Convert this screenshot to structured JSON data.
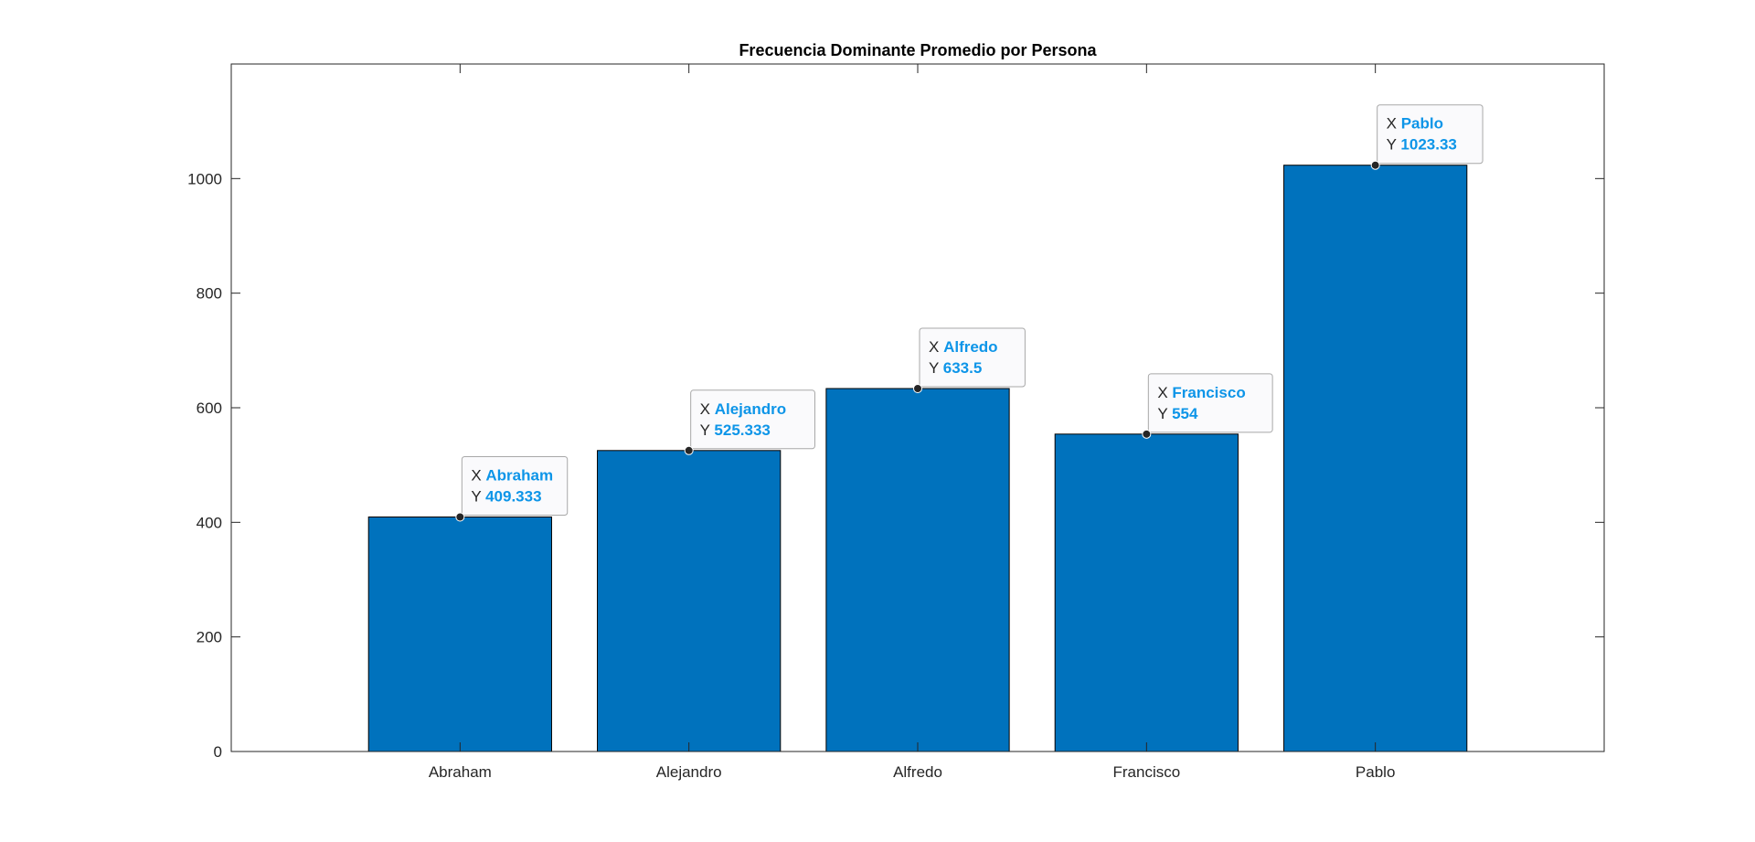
{
  "chart_data": {
    "type": "bar",
    "title": "Frecuencia Dominante Promedio por Persona",
    "categories": [
      "Abraham",
      "Alejandro",
      "Alfredo",
      "Francisco",
      "Pablo"
    ],
    "values": [
      409.333,
      525.333,
      633.5,
      554,
      1023.33
    ],
    "value_labels": [
      "409.333",
      "525.333",
      "633.5",
      "554",
      "1023.33"
    ],
    "yticks": [
      0,
      200,
      400,
      600,
      800,
      1000
    ],
    "ylim": [
      0,
      1200
    ],
    "xlabel": "",
    "ylabel": "",
    "grid": false,
    "bar_color": "#0072BD",
    "datatip": {
      "x_prefix": "X",
      "y_prefix": "Y",
      "value_color": "#0d95e8"
    }
  }
}
